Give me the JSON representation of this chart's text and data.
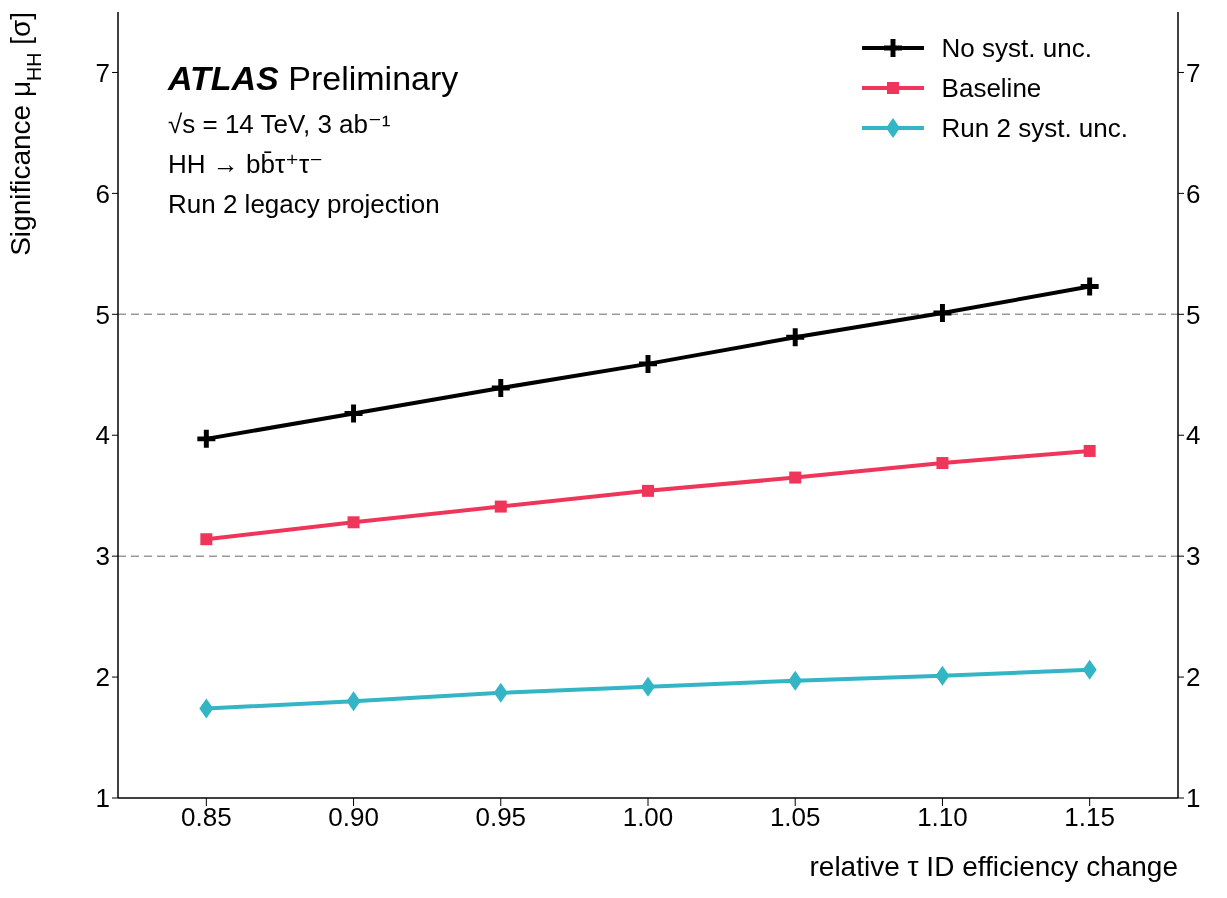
{
  "chart_data": {
    "type": "line",
    "xlabel": "relative τ ID efficiency change",
    "ylabel": "Significance μ$_{HH}$ [σ]",
    "annotations": [
      "ATLAS Preliminary",
      "√s = 14 TeV, 3 ab⁻¹",
      "HH → bb̄τ⁺τ⁻",
      "Run 2 legacy projection"
    ],
    "x": [
      0.85,
      0.9,
      0.95,
      1.0,
      1.05,
      1.1,
      1.15
    ],
    "series": [
      {
        "name": "No syst. unc.",
        "color": "#000000",
        "marker": "cross",
        "values": [
          3.97,
          4.18,
          4.39,
          4.59,
          4.81,
          5.01,
          5.23
        ]
      },
      {
        "name": "Baseline",
        "color": "#f0355a",
        "marker": "square",
        "values": [
          3.14,
          3.28,
          3.41,
          3.54,
          3.65,
          3.77,
          3.87
        ]
      },
      {
        "name": "Run 2 syst. unc.",
        "color": "#33b5c5",
        "marker": "diamond",
        "values": [
          1.74,
          1.8,
          1.87,
          1.92,
          1.97,
          2.01,
          2.06
        ]
      }
    ],
    "xlim": [
      0.82,
      1.18
    ],
    "xticks": [
      0.85,
      {
        "value": 0.9,
        "label": "0.90"
      },
      0.95,
      {
        "value": 1.0,
        "label": "1.00"
      },
      1.05,
      {
        "value": 1.1,
        "label": "1.10"
      },
      1.15
    ],
    "ylim": [
      1,
      7.5
    ],
    "yticks": [
      1,
      2,
      3,
      4,
      5,
      6,
      7
    ],
    "y2lim": [
      1,
      7.5
    ],
    "y2ticks": [
      1,
      2,
      3,
      4,
      5,
      6,
      7
    ],
    "ref_lines": [
      {
        "axis": "y",
        "value": 5,
        "color": "#999999",
        "line_style": "dashed"
      },
      {
        "axis": "y",
        "value": 3,
        "color": "#999999",
        "line_style": "dashed"
      }
    ],
    "grid": false,
    "legend": "top right",
    "line_style": "solid"
  }
}
